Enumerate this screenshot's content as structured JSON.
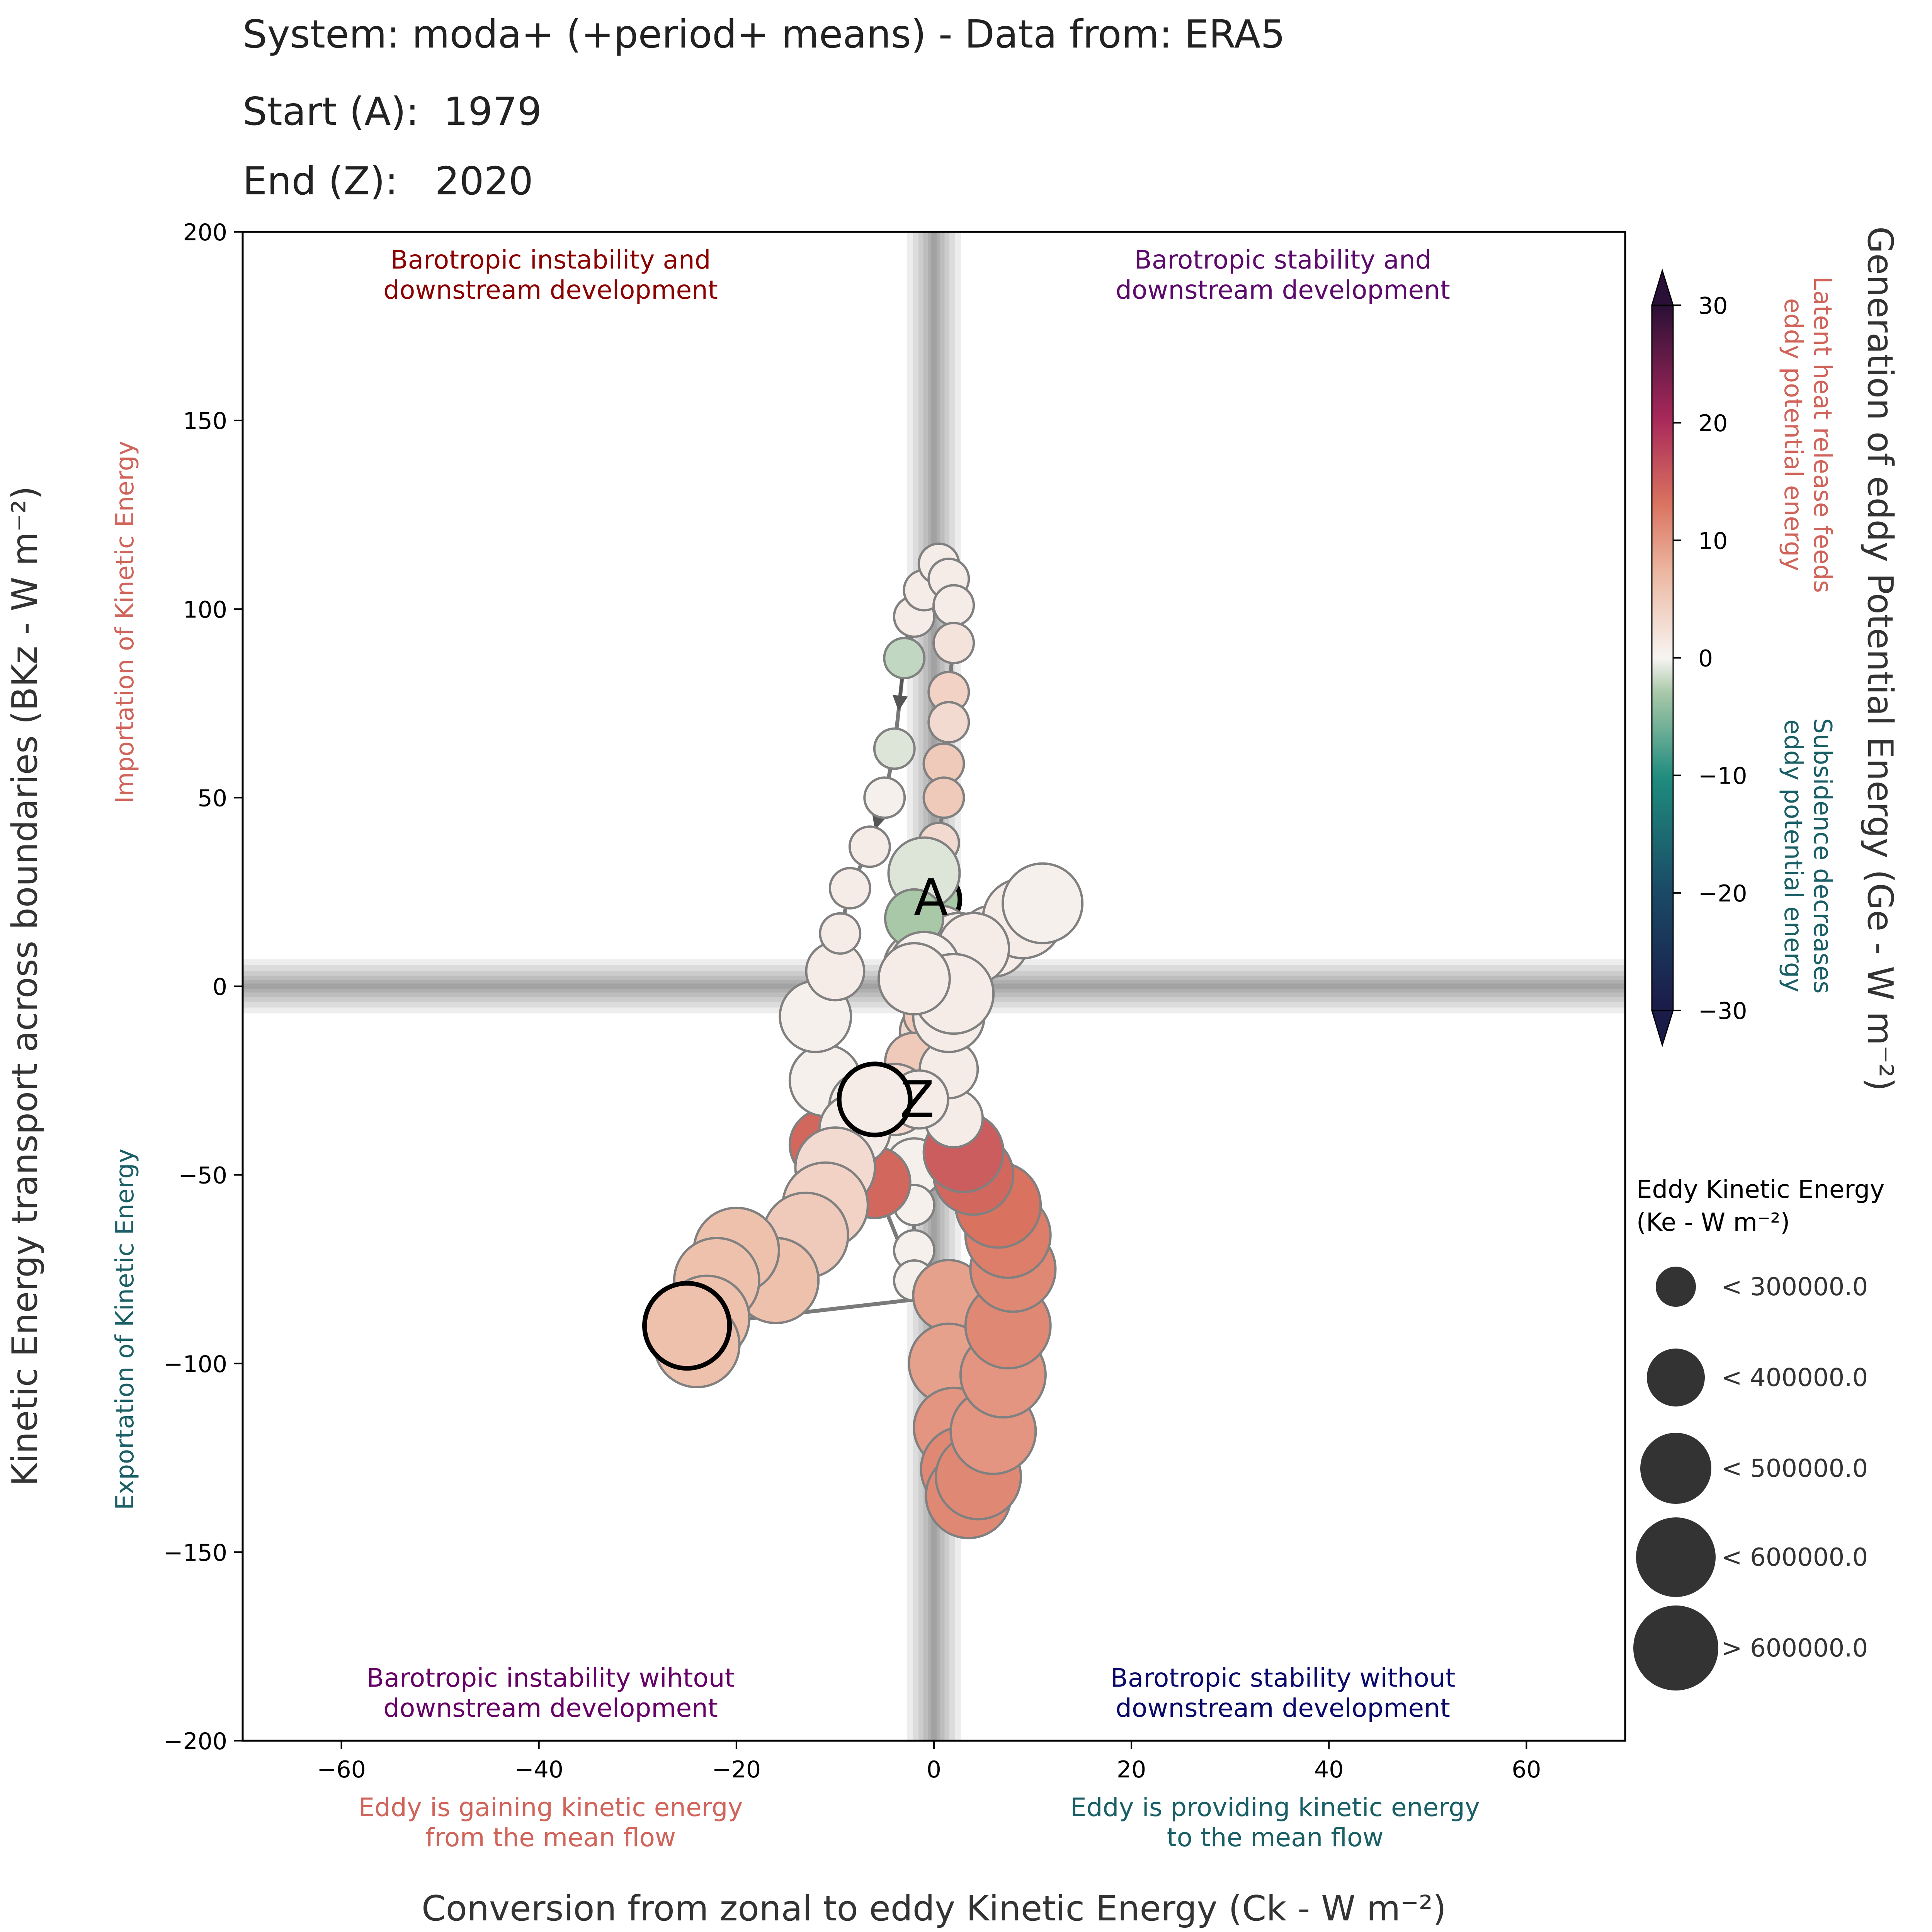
{
  "header": {
    "system_line": "System: moda+ (+period+ means) - Data from: ERA5",
    "start_label": "Start (A):",
    "start_value": "1979",
    "end_label": "End (Z):",
    "end_value": "2020"
  },
  "chart_data": {
    "type": "scatter",
    "title": "System: moda+ (+period+ means) - Data from: ERA5",
    "xlabel": "Conversion from zonal to eddy Kinetic Energy (Ck - W m⁻²)",
    "ylabel": "Kinetic Energy transport across boundaries (BKz - W m⁻²)",
    "xlim": [
      -70,
      70
    ],
    "ylim": [
      -200,
      200
    ],
    "xticks": [
      -60,
      -40,
      -20,
      0,
      20,
      40,
      60
    ],
    "yticks": [
      -200,
      -150,
      -100,
      -50,
      0,
      50,
      100,
      150,
      200
    ],
    "xtick_labels": [
      "−60",
      "−40",
      "−20",
      "0",
      "20",
      "40",
      "60"
    ],
    "ytick_labels": [
      "−200",
      "−150",
      "−100",
      "−50",
      "0",
      "50",
      "100",
      "150",
      "200"
    ],
    "quadrant_labels": [
      {
        "text": [
          "Barotropic instability and",
          "downstream development"
        ],
        "color": "#8b0000",
        "position": "top-left"
      },
      {
        "text": [
          "Barotropic stability and",
          "downstream development"
        ],
        "color": "#5c0a6b",
        "position": "top-right"
      },
      {
        "text": [
          "Barotropic instability wihtout",
          "downstream development"
        ],
        "color": "#660066",
        "position": "bottom-left"
      },
      {
        "text": [
          "Barotropic stability without",
          "downstream development"
        ],
        "color": "#0a0a6b",
        "position": "bottom-right"
      }
    ],
    "x_side_labels": [
      {
        "text": [
          "Eddy is gaining kinetic energy",
          "from the mean flow"
        ],
        "color": "#d0645a"
      },
      {
        "text": [
          "Eddy is providing kinetic energy",
          "to the mean flow"
        ],
        "color": "#1a5f66"
      }
    ],
    "y_side_labels": [
      {
        "text": "Importation of Kinetic Energy",
        "color": "#d0645a"
      },
      {
        "text": "Exportation of Kinetic Energy",
        "color": "#1a5f66"
      }
    ],
    "colorbar": {
      "label": "Generation of eddy Potential Energy (Ge - W m⁻²)",
      "range": [
        -30,
        30
      ],
      "ticks": [
        30,
        20,
        10,
        0,
        -10,
        -20,
        -30
      ],
      "tick_labels": [
        "30",
        "20",
        "10",
        "0",
        "−10",
        "−20",
        "−30"
      ],
      "upper_note": [
        "Latent heat release feeds",
        "eddy potential energy"
      ],
      "upper_color": "#d0645a",
      "lower_note": [
        "Subsidence decreases",
        "eddy potential energy"
      ],
      "lower_color": "#1a5f66"
    },
    "size_legend": {
      "title_line1": "Eddy Kinetic Energy",
      "title_line2": "(Ke - W m⁻²)",
      "entries": [
        "< 300000.0",
        "< 400000.0",
        "< 500000.0",
        "< 600000.0",
        "> 600000.0"
      ],
      "color": "#333333"
    },
    "start_marker": "A",
    "end_marker": "Z",
    "series": [
      {
        "points": [
          {
            "x": -0.3,
            "y": 23,
            "ge": -3,
            "ke": 1
          },
          {
            "x": 0.5,
            "y": 12,
            "ge": 1,
            "ke": 2
          },
          {
            "x": -1.5,
            "y": 5,
            "ge": 1,
            "ke": 2
          },
          {
            "x": 0.2,
            "y": 2,
            "ge": 0,
            "ke": 2
          },
          {
            "x": 2.5,
            "y": 10,
            "ge": 1,
            "ke": 2
          },
          {
            "x": 6,
            "y": 12,
            "ge": 1,
            "ke": 2
          },
          {
            "x": 9,
            "y": 18,
            "ge": 1,
            "ke": 3
          },
          {
            "x": 11,
            "y": 22,
            "ge": 0.5,
            "ke": 3
          },
          {
            "x": 4,
            "y": 10,
            "ge": 1,
            "ke": 2
          },
          {
            "x": 1,
            "y": -5,
            "ge": 1,
            "ke": 2
          },
          {
            "x": -0.5,
            "y": -12,
            "ge": 3,
            "ke": 1
          },
          {
            "x": -1,
            "y": -22,
            "ge": 2,
            "ke": 1
          },
          {
            "x": -2,
            "y": -32,
            "ge": 0.5,
            "ke": 1
          },
          {
            "x": -3,
            "y": -38,
            "ge": 0.5,
            "ke": 1
          },
          {
            "x": -2,
            "y": -48,
            "ge": 0.5,
            "ke": 1
          },
          {
            "x": -2,
            "y": -58,
            "ge": 0.5,
            "ke": 0
          },
          {
            "x": -2,
            "y": -70,
            "ge": 0.5,
            "ke": 0
          },
          {
            "x": -2,
            "y": -78,
            "ge": 0.5,
            "ke": 0
          },
          {
            "x": -6,
            "y": -52,
            "ge": 14,
            "ke": 2
          },
          {
            "x": -11,
            "y": -42,
            "ge": 14,
            "ke": 2
          },
          {
            "x": -11,
            "y": -25,
            "ge": 0.5,
            "ke": 2
          },
          {
            "x": -12,
            "y": -8,
            "ge": 0.5,
            "ke": 2
          },
          {
            "x": -10,
            "y": 4,
            "ge": 1,
            "ke": 1
          },
          {
            "x": -9.5,
            "y": 14,
            "ge": 1,
            "ke": 0
          },
          {
            "x": -8.5,
            "y": 26,
            "ge": 1,
            "ke": 0
          },
          {
            "x": -6.5,
            "y": 37,
            "ge": 1,
            "ke": 0
          },
          {
            "x": -5,
            "y": 50,
            "ge": 0.5,
            "ke": 0
          },
          {
            "x": -4,
            "y": 63,
            "ge": -1,
            "ke": 0
          },
          {
            "x": -3,
            "y": 87,
            "ge": -2,
            "ke": 0
          },
          {
            "x": -2,
            "y": 98,
            "ge": 1,
            "ke": 0
          },
          {
            "x": -1,
            "y": 105,
            "ge": 1,
            "ke": 0
          },
          {
            "x": 0.5,
            "y": 112,
            "ge": 1,
            "ke": 0
          },
          {
            "x": 1.5,
            "y": 108,
            "ge": 1,
            "ke": 0
          },
          {
            "x": 2,
            "y": 101,
            "ge": 1,
            "ke": 0
          },
          {
            "x": 2,
            "y": 91,
            "ge": 2,
            "ke": 0
          },
          {
            "x": 1.5,
            "y": 78,
            "ge": 4,
            "ke": 0
          },
          {
            "x": 1.5,
            "y": 70,
            "ge": 3,
            "ke": 0
          },
          {
            "x": 1,
            "y": 59,
            "ge": 5,
            "ke": 0
          },
          {
            "x": 1,
            "y": 50,
            "ge": 5,
            "ke": 0
          },
          {
            "x": 0.5,
            "y": 38,
            "ge": 3,
            "ke": 0
          },
          {
            "x": -1,
            "y": 30,
            "ge": -1,
            "ke": 2
          },
          {
            "x": -2,
            "y": 18,
            "ge": -3,
            "ke": 1
          },
          {
            "x": -1,
            "y": 5,
            "ge": 0.5,
            "ke": 2
          },
          {
            "x": -1,
            "y": -8,
            "ge": 5,
            "ke": 0
          },
          {
            "x": -2,
            "y": -20,
            "ge": 5,
            "ke": 1
          },
          {
            "x": -4,
            "y": -30,
            "ge": 3,
            "ke": 2
          },
          {
            "x": -7,
            "y": -32,
            "ge": 1,
            "ke": 2
          },
          {
            "x": -8,
            "y": -38,
            "ge": 1,
            "ke": 2
          },
          {
            "x": -10,
            "y": -48,
            "ge": 3,
            "ke": 3
          },
          {
            "x": -11,
            "y": -58,
            "ge": 4,
            "ke": 4
          },
          {
            "x": -13,
            "y": -66,
            "ge": 5,
            "ke": 4
          },
          {
            "x": -16,
            "y": -78,
            "ge": 6,
            "ke": 4
          },
          {
            "x": -20,
            "y": -70,
            "ge": 6,
            "ke": 4
          },
          {
            "x": -22,
            "y": -78,
            "ge": 6,
            "ke": 4
          },
          {
            "x": -23,
            "y": -88,
            "ge": 6,
            "ke": 4
          },
          {
            "x": -24,
            "y": -95,
            "ge": 6,
            "ke": 4
          },
          {
            "x": -25,
            "y": -90,
            "ge": 6,
            "ke": 4
          },
          {
            "x": 1.5,
            "y": -82,
            "ge": 9,
            "ke": 2
          },
          {
            "x": 1.5,
            "y": -100,
            "ge": 9,
            "ke": 3
          },
          {
            "x": 2,
            "y": -117,
            "ge": 10,
            "ke": 3
          },
          {
            "x": 3,
            "y": -128,
            "ge": 11,
            "ke": 4
          },
          {
            "x": 3.5,
            "y": -135,
            "ge": 11,
            "ke": 4
          },
          {
            "x": 4.5,
            "y": -130,
            "ge": 11,
            "ke": 4
          },
          {
            "x": 6,
            "y": -118,
            "ge": 10,
            "ke": 4
          },
          {
            "x": 7,
            "y": -103,
            "ge": 10,
            "ke": 4
          },
          {
            "x": 7.5,
            "y": -90,
            "ge": 11,
            "ke": 4
          },
          {
            "x": 8,
            "y": -75,
            "ge": 11,
            "ke": 4
          },
          {
            "x": 7.5,
            "y": -66,
            "ge": 12,
            "ke": 4
          },
          {
            "x": 6.5,
            "y": -58,
            "ge": 13,
            "ke": 4
          },
          {
            "x": 4,
            "y": -50,
            "ge": 14,
            "ke": 3
          },
          {
            "x": 3,
            "y": -44,
            "ge": 15,
            "ke": 3
          },
          {
            "x": 2,
            "y": -35,
            "ge": 1,
            "ke": 1
          },
          {
            "x": 1.5,
            "y": -22,
            "ge": 1,
            "ke": 1
          },
          {
            "x": 1.5,
            "y": -8,
            "ge": 1,
            "ke": 2
          },
          {
            "x": 2,
            "y": -2,
            "ge": 1,
            "ke": 3
          },
          {
            "x": -2,
            "y": 2,
            "ge": 1,
            "ke": 2
          },
          {
            "x": -1.5,
            "y": -30,
            "ge": 1,
            "ke": 1
          },
          {
            "x": -6,
            "y": -30,
            "ge": 1,
            "ke": 2
          }
        ]
      }
    ]
  }
}
